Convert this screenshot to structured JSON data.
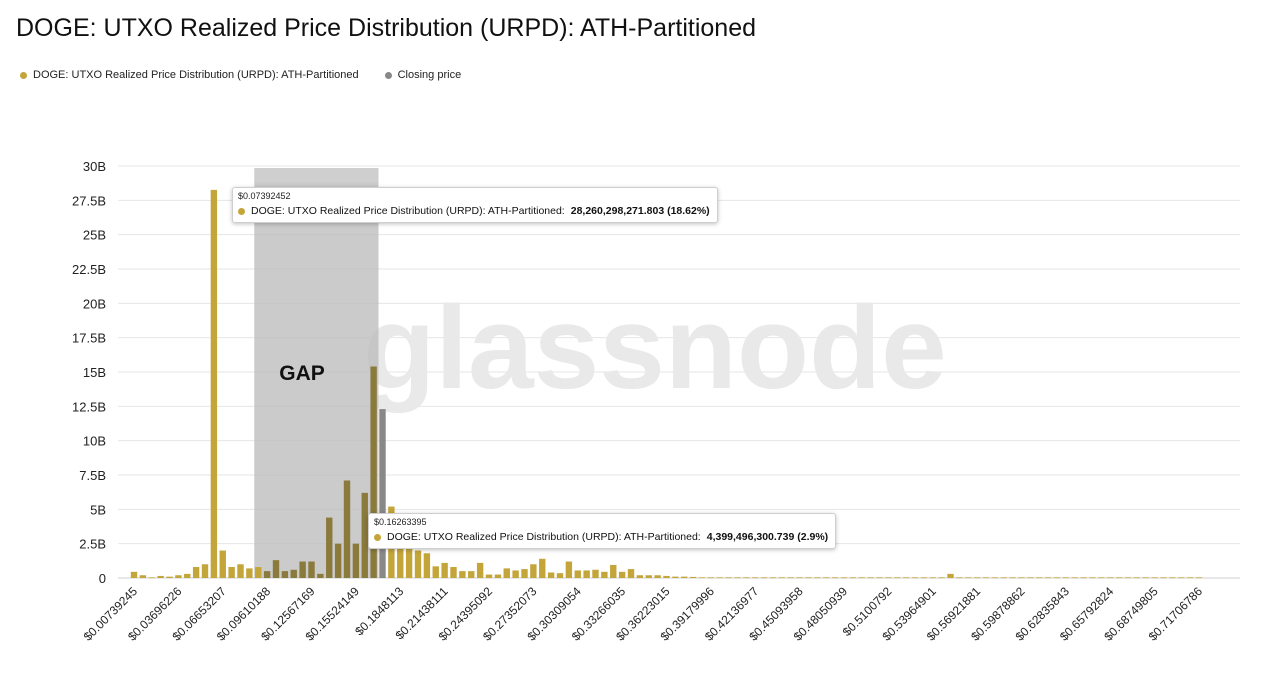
{
  "title": "DOGE: UTXO Realized Price Distribution (URPD): ATH-Partitioned",
  "legend": {
    "series1": "DOGE: UTXO Realized Price Distribution (URPD): ATH-Partitioned",
    "series2": "Closing price"
  },
  "colors": {
    "bar": "#c3a53a",
    "bar_dim": "#8a7a3c",
    "closing": "#888888",
    "gap_band": "#b9b9b9",
    "grid": "#e6e6e6"
  },
  "annotation": {
    "gap_label": "GAP"
  },
  "watermark": "glassnode",
  "tooltips": [
    {
      "price": "$0.07392452",
      "series": "DOGE: UTXO Realized Price Distribution (URPD): ATH-Partitioned: ",
      "value": "28,260,298,271.803 (18.62%)"
    },
    {
      "price": "$0.16263395",
      "series": "DOGE: UTXO Realized Price Distribution (URPD): ATH-Partitioned: ",
      "value": "4,399,496,300.739 (2.9%)"
    }
  ],
  "chart_data": {
    "type": "bar",
    "title": "DOGE: UTXO Realized Price Distribution (URPD): ATH-Partitioned",
    "ylabel": "",
    "xlabel": "",
    "ylim": [
      0,
      30000000000
    ],
    "y_ticks": [
      "0",
      "2.5B",
      "5B",
      "7.5B",
      "10B",
      "12.5B",
      "15B",
      "17.5B",
      "20B",
      "22.5B",
      "25B",
      "27.5B",
      "30B"
    ],
    "x_ticks": [
      "$0.00739245",
      "$0.03696226",
      "$0.06653207",
      "$0.09610188",
      "$0.12567169",
      "$0.15524149",
      "$0.1848113",
      "$0.21438111",
      "$0.24395092",
      "$0.27352073",
      "$0.30309054",
      "$0.33266035",
      "$0.36223015",
      "$0.39179996",
      "$0.42136977",
      "$0.45093958",
      "$0.48050939",
      "$0.5100792",
      "$0.53964901",
      "$0.56921881",
      "$0.59878862",
      "$0.62835843",
      "$0.65792824",
      "$0.68749805",
      "$0.71706786"
    ],
    "x_tick_bar_index": [
      0,
      5,
      10,
      15,
      20,
      25,
      30,
      35,
      40,
      45,
      50,
      55,
      60,
      65,
      70,
      75,
      80,
      85,
      90,
      95,
      100,
      105,
      110,
      115,
      120
    ],
    "gap_range_bars": [
      14,
      27
    ],
    "closing_price_bar": 28,
    "series": [
      {
        "name": "DOGE: UTXO Realized Price Distribution (URPD): ATH-Partitioned",
        "values": [
          0.45,
          0.2,
          0.05,
          0.15,
          0.1,
          0.2,
          0.3,
          0.8,
          1.0,
          28.26,
          2.0,
          0.8,
          1.0,
          0.7,
          0.8,
          0.5,
          1.3,
          0.5,
          0.6,
          1.2,
          1.2,
          0.3,
          4.4,
          2.5,
          7.1,
          2.5,
          6.2,
          15.4,
          12.3,
          5.2,
          2.5,
          2.3,
          2.0,
          1.8,
          0.85,
          1.1,
          0.8,
          0.5,
          0.5,
          1.1,
          0.25,
          0.25,
          0.7,
          0.55,
          0.65,
          1.0,
          1.4,
          0.4,
          0.35,
          1.2,
          0.55,
          0.55,
          0.6,
          0.45,
          0.95,
          0.45,
          0.65,
          0.2,
          0.2,
          0.2,
          0.15,
          0.1,
          0.1,
          0.08,
          0.05,
          0.05,
          0.05,
          0.05,
          0.05,
          0.05,
          0.05,
          0.05,
          0.05,
          0.05,
          0.05,
          0.05,
          0.05,
          0.05,
          0.05,
          0.05,
          0.05,
          0.05,
          0.05,
          0.05,
          0.05,
          0.05,
          0.05,
          0.05,
          0.05,
          0.05,
          0.05,
          0.05,
          0.3,
          0.05,
          0.05,
          0.05,
          0.05,
          0.05,
          0.05,
          0.05,
          0.05,
          0.05,
          0.05,
          0.05,
          0.05,
          0.05,
          0.05,
          0.05,
          0.05,
          0.05,
          0.05,
          0.05,
          0.05,
          0.05,
          0.05,
          0.05,
          0.05,
          0.05,
          0.05,
          0.05,
          0.05
        ],
        "unit": "billion"
      }
    ]
  }
}
